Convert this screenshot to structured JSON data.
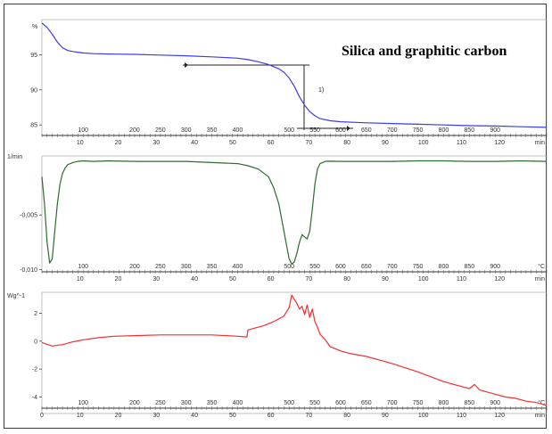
{
  "chart_data": [
    {
      "type": "line",
      "title": "Silica and graphitic carbon",
      "ylabel": "%",
      "ylim": [
        83.5,
        100
      ],
      "yticks": [
        85,
        90,
        95
      ],
      "temp_ticks": [
        "100",
        "200",
        "250",
        "300",
        "350",
        "400",
        "500",
        "550",
        "600",
        "650",
        "700",
        "750",
        "800",
        "850",
        "900"
      ],
      "temp_tick_values": [
        100,
        200,
        250,
        300,
        350,
        400,
        500,
        550,
        600,
        650,
        700,
        750,
        800,
        850,
        900
      ],
      "temp_unit": "",
      "time_ticks": [
        "10",
        "20",
        "30",
        "40",
        "50",
        "60",
        "70",
        "80",
        "90",
        "100",
        "110",
        "120"
      ],
      "time_unit": "min",
      "xlim": [
        20,
        1000
      ],
      "annotation": "1)",
      "series": [
        {
          "color": "#3b3bf0",
          "x": [
            20,
            30,
            40,
            50,
            60,
            70,
            80,
            90,
            100,
            120,
            150,
            200,
            250,
            300,
            350,
            400,
            420,
            440,
            460,
            480,
            490,
            500,
            510,
            520,
            530,
            540,
            550,
            560,
            580,
            600,
            650,
            700,
            750,
            800,
            850,
            900,
            950,
            1000
          ],
          "y": [
            99.5,
            98.9,
            97.9,
            96.8,
            96.0,
            95.6,
            95.45,
            95.35,
            95.25,
            95.15,
            95.1,
            95.05,
            94.95,
            94.85,
            94.7,
            94.5,
            94.3,
            94.0,
            93.6,
            93.0,
            92.5,
            91.7,
            90.5,
            89.0,
            87.8,
            86.9,
            86.3,
            85.9,
            85.6,
            85.45,
            85.3,
            85.2,
            85.1,
            85.0,
            84.9,
            84.85,
            84.75,
            84.65
          ]
        }
      ]
    },
    {
      "type": "line",
      "title": "",
      "ylabel": "1/min",
      "ylim": [
        -0.0102,
        0.0004
      ],
      "yticks": [
        -0.005,
        -0.01
      ],
      "ytick_labels": [
        "-0,005",
        "-0,010"
      ],
      "temp_ticks": [
        "100",
        "200",
        "250",
        "300",
        "350",
        "400",
        "500",
        "550",
        "600",
        "650",
        "700",
        "750",
        "800",
        "850",
        "900"
      ],
      "temp_tick_values": [
        100,
        200,
        250,
        300,
        350,
        400,
        500,
        550,
        600,
        650,
        700,
        750,
        800,
        850,
        900
      ],
      "temp_unit": "°C",
      "time_ticks": [
        "10",
        "20",
        "30",
        "40",
        "50",
        "60",
        "70",
        "80",
        "90",
        "100",
        "110",
        "120"
      ],
      "time_unit": "min",
      "xlim": [
        20,
        1000
      ],
      "series": [
        {
          "color": "#2e6b2e",
          "x": [
            20,
            25,
            30,
            35,
            40,
            45,
            50,
            55,
            60,
            65,
            70,
            75,
            80,
            90,
            100,
            120,
            150,
            200,
            250,
            300,
            350,
            400,
            420,
            440,
            460,
            470,
            480,
            490,
            500,
            505,
            510,
            515,
            520,
            525,
            530,
            535,
            540,
            545,
            550,
            555,
            560,
            565,
            570,
            580,
            600,
            650,
            700,
            750,
            800,
            850,
            900,
            950,
            1000
          ],
          "y": [
            -0.0015,
            -0.004,
            -0.0075,
            -0.0094,
            -0.009,
            -0.0065,
            -0.004,
            -0.0022,
            -0.0012,
            -0.0007,
            -0.0004,
            -0.0003,
            -0.0002,
            -0.0001,
            -5e-05,
            -0.0001,
            -5e-05,
            -0.0001,
            -0.0001,
            -0.0001,
            -0.0002,
            -0.0003,
            -0.0005,
            -0.0008,
            -0.0015,
            -0.0025,
            -0.004,
            -0.0065,
            -0.009,
            -0.0095,
            -0.0093,
            -0.0085,
            -0.0075,
            -0.0068,
            -0.007,
            -0.0072,
            -0.0065,
            -0.0045,
            -0.0022,
            -0.0008,
            -0.0003,
            -0.0002,
            -0.0001,
            -8e-05,
            -0.0001,
            -0.0001,
            -0.0001,
            -5e-05,
            -5e-05,
            -0.0001,
            -0.0001,
            -5e-05,
            -0.0001
          ]
        }
      ]
    },
    {
      "type": "line",
      "title": "",
      "ylabel": "Wg^-1",
      "ylim": [
        -4.8,
        3.5
      ],
      "yticks": [
        2,
        0,
        -2,
        -4
      ],
      "ytick_labels": [
        "2",
        "0",
        "-2",
        "-4"
      ],
      "temp_ticks": [
        "100",
        "200",
        "250",
        "300",
        "350",
        "400",
        "500",
        "550",
        "600",
        "650",
        "700",
        "750",
        "800",
        "850",
        "900"
      ],
      "temp_tick_values": [
        100,
        200,
        250,
        300,
        350,
        400,
        500,
        550,
        600,
        650,
        700,
        750,
        800,
        850,
        900
      ],
      "temp_unit": "°C",
      "time_ticks": [
        "0",
        "10",
        "20",
        "30",
        "40",
        "50",
        "60",
        "70",
        "80",
        "90",
        "100",
        "110",
        "120"
      ],
      "time_unit": "min",
      "xlim": [
        20,
        1000
      ],
      "series": [
        {
          "color": "#f03030",
          "x": [
            20,
            40,
            60,
            80,
            100,
            130,
            160,
            200,
            250,
            300,
            350,
            400,
            418,
            420,
            430,
            450,
            470,
            490,
            500,
            505,
            510,
            515,
            520,
            525,
            530,
            535,
            540,
            545,
            550,
            555,
            560,
            570,
            580,
            600,
            620,
            650,
            680,
            700,
            750,
            800,
            850,
            860,
            870,
            880,
            900,
            920,
            940,
            960,
            980,
            1000
          ],
          "y": [
            -0.1,
            -0.35,
            -0.25,
            -0.05,
            0.1,
            0.25,
            0.35,
            0.4,
            0.45,
            0.45,
            0.45,
            0.35,
            0.3,
            0.8,
            0.9,
            1.1,
            1.4,
            1.8,
            2.4,
            3.3,
            3.0,
            2.7,
            2.3,
            2.5,
            1.9,
            2.6,
            1.7,
            2.3,
            1.4,
            1.0,
            0.5,
            0.1,
            -0.4,
            -0.7,
            -0.9,
            -1.1,
            -1.4,
            -1.6,
            -2.2,
            -2.9,
            -3.4,
            -3.1,
            -3.5,
            -3.6,
            -3.8,
            -4.0,
            -4.1,
            -4.3,
            -4.4,
            -4.6
          ]
        }
      ]
    }
  ]
}
